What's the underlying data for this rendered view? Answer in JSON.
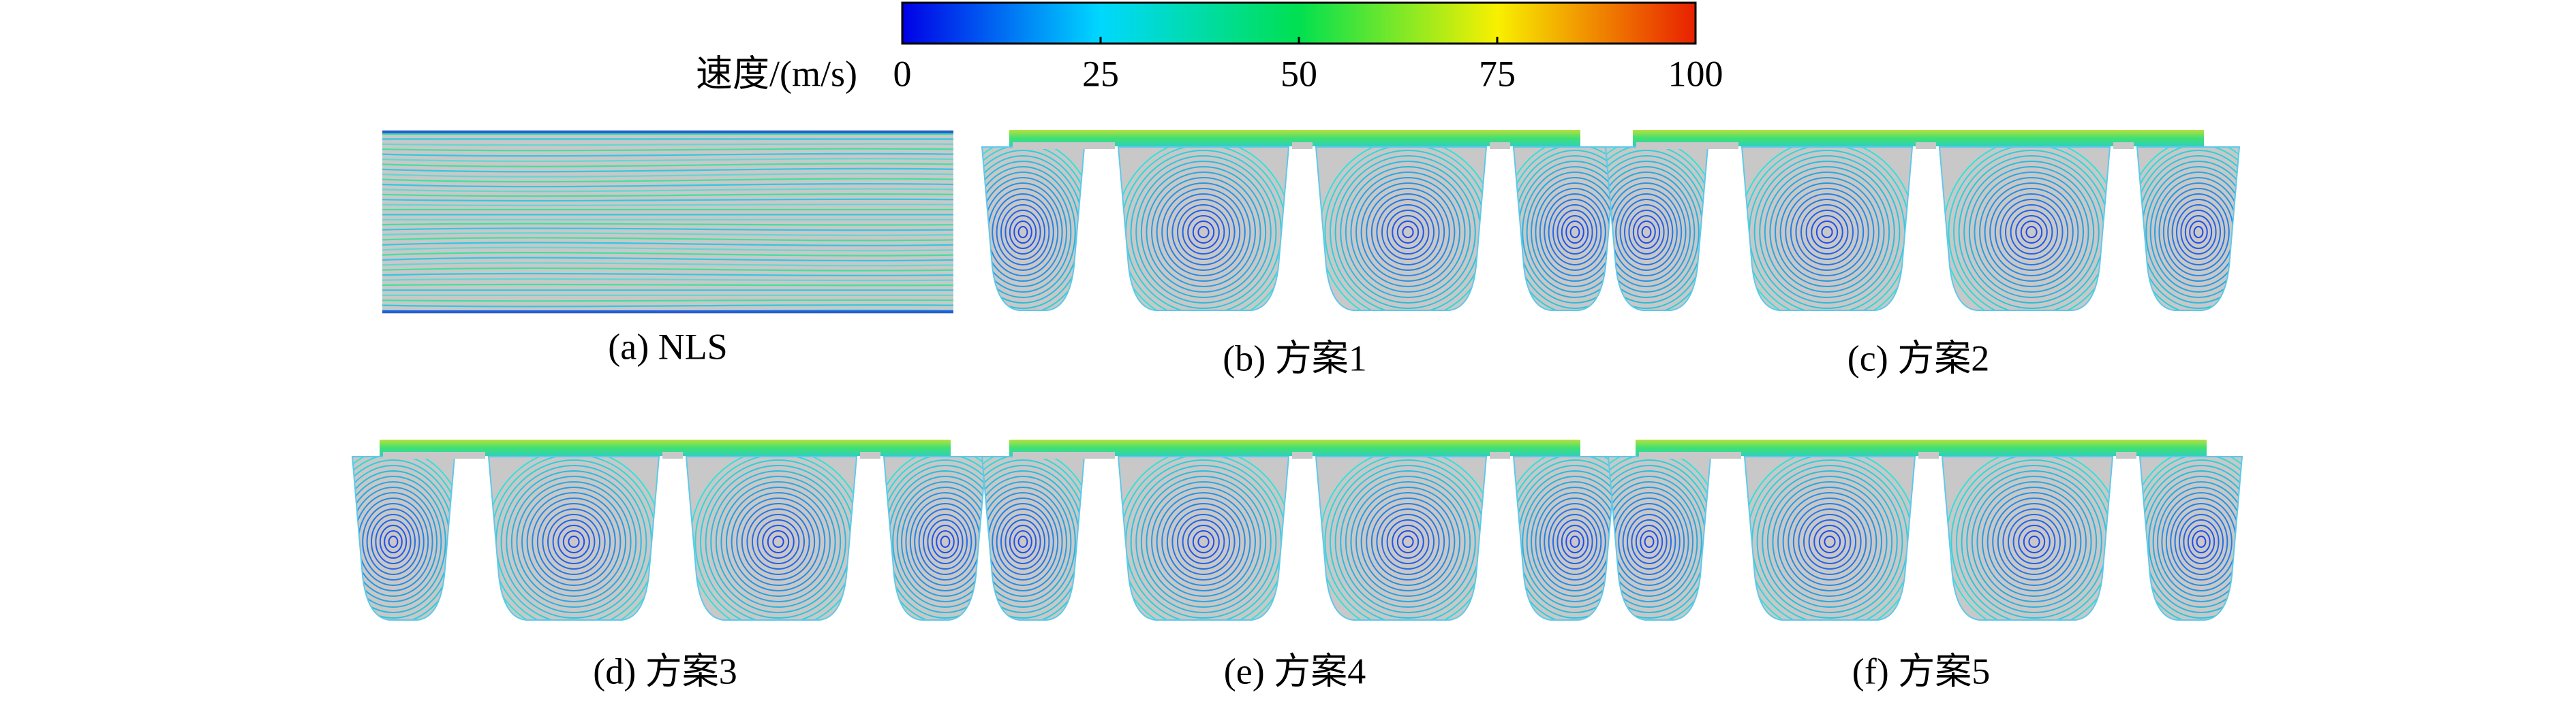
{
  "colorbar": {
    "label": "速度/(m/s)",
    "lim": [
      0,
      100
    ],
    "ticks": [
      0,
      25,
      50,
      75,
      100
    ]
  },
  "panels": [
    "(a) NLS",
    "(b) 方案1",
    "(c) 方案2",
    "(d) 方案3",
    "(e) 方案4",
    "(f) 方案5"
  ]
}
